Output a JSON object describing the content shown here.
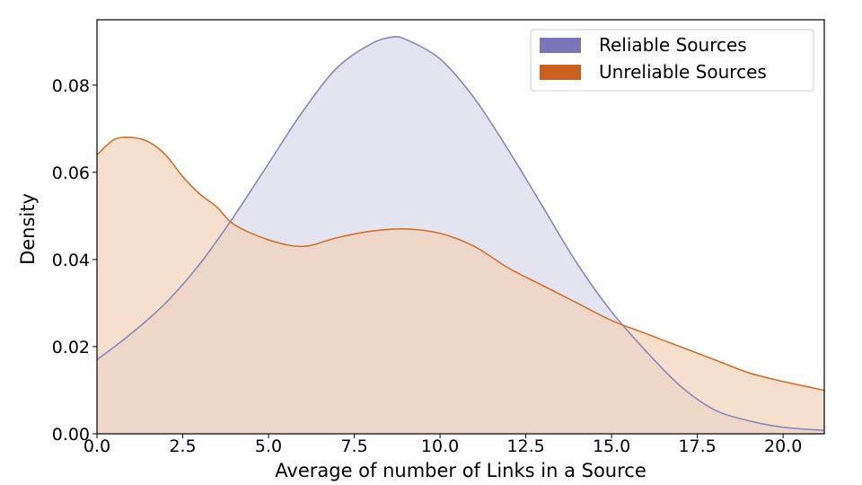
{
  "chart_data": {
    "type": "area",
    "title": "",
    "xlabel": "Average of number of Links in a Source",
    "ylabel": "Density",
    "xlim": [
      0,
      21.2
    ],
    "ylim": [
      0,
      0.095
    ],
    "xticks": [
      0.0,
      2.5,
      5.0,
      7.5,
      10.0,
      12.5,
      15.0,
      17.5,
      20.0
    ],
    "xtick_labels": [
      "0.0",
      "2.5",
      "5.0",
      "7.5",
      "10.0",
      "12.5",
      "15.0",
      "17.5",
      "20.0"
    ],
    "yticks": [
      0.0,
      0.02,
      0.04,
      0.06,
      0.08
    ],
    "ytick_labels": [
      "0.00",
      "0.02",
      "0.04",
      "0.06",
      "0.08"
    ],
    "grid": false,
    "legend": "top-right",
    "series": [
      {
        "name": "Reliable Sources",
        "line_color": "#8a87c0",
        "fill_color": "#d9d8ea",
        "legend_color": "#7b76b8",
        "x": [
          0,
          1,
          2,
          3,
          4,
          5,
          6,
          7,
          8,
          8.6,
          9,
          10,
          11,
          12,
          13,
          14,
          15,
          16,
          17,
          18,
          19,
          20,
          21.2
        ],
        "y": [
          0.017,
          0.023,
          0.03,
          0.039,
          0.05,
          0.062,
          0.074,
          0.084,
          0.0895,
          0.091,
          0.0905,
          0.086,
          0.077,
          0.065,
          0.052,
          0.039,
          0.028,
          0.019,
          0.011,
          0.0055,
          0.003,
          0.0015,
          0.0008
        ]
      },
      {
        "name": "Unreliable Sources",
        "line_color": "#d0712f",
        "fill_color": "#f2d2b8",
        "legend_color": "#c8611e",
        "x": [
          0,
          0.5,
          1,
          1.5,
          2,
          2.5,
          3,
          3.5,
          4,
          5,
          6,
          7,
          8,
          9,
          10,
          11,
          12,
          13,
          14,
          15,
          16,
          17,
          18,
          19,
          20,
          21.2
        ],
        "y": [
          0.064,
          0.0675,
          0.068,
          0.067,
          0.064,
          0.059,
          0.055,
          0.052,
          0.048,
          0.0445,
          0.043,
          0.045,
          0.0465,
          0.047,
          0.046,
          0.043,
          0.038,
          0.034,
          0.03,
          0.026,
          0.023,
          0.02,
          0.017,
          0.014,
          0.012,
          0.01
        ]
      }
    ]
  }
}
